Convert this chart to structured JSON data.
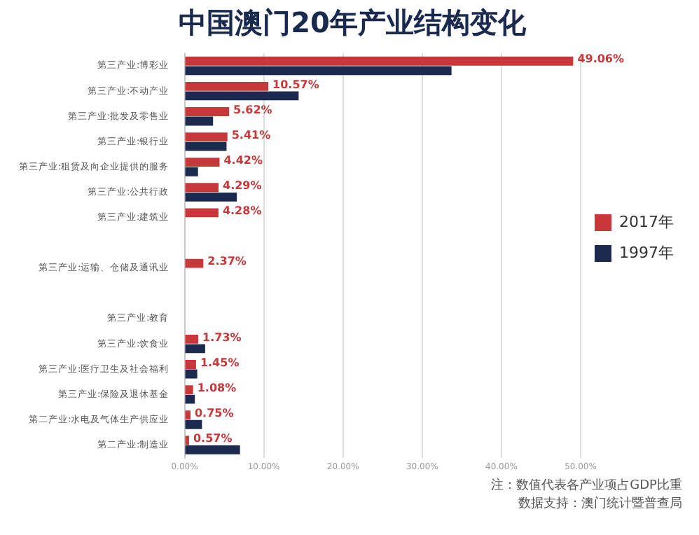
{
  "chart_data": {
    "type": "bar",
    "orientation": "horizontal",
    "title": "中国澳门20年产业结构变化",
    "categories": [
      "第三产业:博彩业",
      "第三产业:不动产业",
      "第三产业:批发及零售业",
      "第三产业:银行业",
      "第三产业:租赁及向企业提供的服务",
      "第三产业:公共行政",
      "第三产业:建筑业",
      null,
      "第三产业:运输、仓储及通讯业",
      null,
      "第三产业:教育",
      "第三产业:饮食业",
      "第三产业:医疗卫生及社会福利",
      "第三产业:保险及退休基金",
      "第二产业:水电及气体生产供应业",
      "第二产业:制造业"
    ],
    "series": [
      {
        "name": "2017年",
        "color": "#c8383a",
        "values": [
          49.06,
          10.57,
          5.62,
          5.41,
          4.42,
          4.29,
          4.28,
          null,
          2.37,
          null,
          null,
          1.73,
          1.45,
          1.08,
          0.75,
          0.57
        ],
        "value_labels": [
          "49.06%",
          "10.57%",
          "5.62%",
          "5.41%",
          "4.42%",
          "4.29%",
          "4.28%",
          null,
          "2.37%",
          null,
          null,
          "1.73%",
          "1.45%",
          "1.08%",
          "0.75%",
          "0.57%"
        ]
      },
      {
        "name": "1997年",
        "color": "#1b2a4e",
        "values": [
          33.7,
          14.4,
          3.6,
          5.3,
          1.7,
          6.6,
          null,
          null,
          null,
          null,
          null,
          2.6,
          1.6,
          1.3,
          2.2,
          7.0
        ]
      }
    ],
    "xlim": [
      0,
      50
    ],
    "xticks": [
      {
        "value": 0,
        "label": "0.00%"
      },
      {
        "value": 10,
        "label": "10.00%"
      },
      {
        "value": 20,
        "label": "20.00%"
      },
      {
        "value": 30,
        "label": "30.00%"
      },
      {
        "value": 40,
        "label": "40.00%"
      },
      {
        "value": 50,
        "label": "50.00%"
      }
    ],
    "grid": "x",
    "legend": "right",
    "annotations": [
      "注：数值代表各产业项占GDP比重",
      "数据支持：澳门统计暨普查局"
    ]
  }
}
